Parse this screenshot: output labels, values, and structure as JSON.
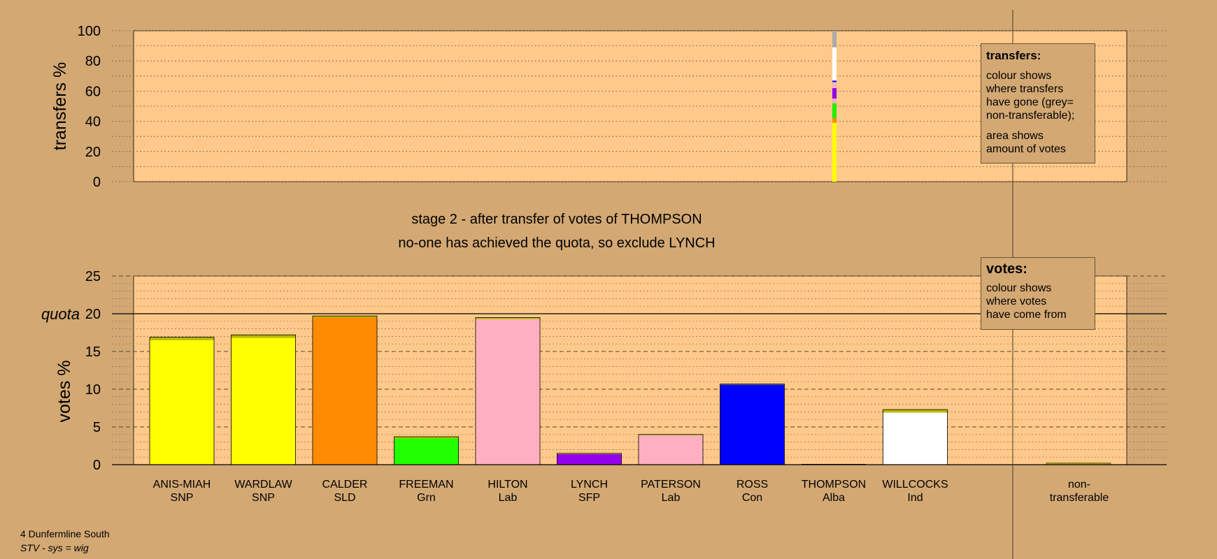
{
  "chart_data": {
    "type": "bar",
    "stage_title": "stage 2 - after transfer of votes of THOMPSON",
    "stage_subtitle": "no-one has achieved the quota, so exclude LYNCH",
    "transfers_chart": {
      "ylabel": "transfers %",
      "ylim": [
        0,
        100
      ],
      "yticks": [
        0,
        20,
        40,
        60,
        80,
        100
      ],
      "transferring_candidate": "THOMPSON",
      "segments": [
        {
          "to": "SNP (ANIS-MIAH/WARDLAW)",
          "color": "#ffff00",
          "from": 0,
          "to_pct": 39
        },
        {
          "to": "SLD",
          "color": "#ff8c00",
          "from": 39,
          "to_pct": 42
        },
        {
          "to": "Grn",
          "color": "#22ee00",
          "from": 42,
          "to_pct": 52
        },
        {
          "to": "Lab",
          "color": "#ffb0c0",
          "from": 52,
          "to_pct": 55
        },
        {
          "to": "SFP",
          "color": "#9400ee",
          "from": 55,
          "to_pct": 62
        },
        {
          "to": "Lab",
          "color": "#ffb0c0",
          "from": 62,
          "to_pct": 66
        },
        {
          "to": "Con",
          "color": "#0000ff",
          "from": 66,
          "to_pct": 67
        },
        {
          "to": "Ind",
          "color": "#ffffff",
          "from": 67,
          "to_pct": 89
        },
        {
          "to": "non-transferable",
          "color": "#aaaaaa",
          "from": 89,
          "to_pct": 100
        }
      ]
    },
    "votes_chart": {
      "ylabel": "votes %",
      "ylim": [
        0,
        25
      ],
      "yticks": [
        0,
        5,
        10,
        15,
        20,
        25
      ],
      "quota": 20,
      "quota_label": "quota",
      "candidates": [
        {
          "name": "ANIS-MIAH",
          "party": "SNP",
          "total": 16.9,
          "segments": [
            {
              "color": "#ffff00",
              "value": 16.5
            },
            {
              "color": "#b8b800",
              "value": 0.4
            }
          ]
        },
        {
          "name": "WARDLAW",
          "party": "SNP",
          "total": 17.2,
          "segments": [
            {
              "color": "#ffff00",
              "value": 16.8
            },
            {
              "color": "#b8b800",
              "value": 0.4
            }
          ]
        },
        {
          "name": "CALDER",
          "party": "SLD",
          "total": 19.7,
          "segments": [
            {
              "color": "#ff8c00",
              "value": 19.5
            },
            {
              "color": "#b8b800",
              "value": 0.2
            }
          ]
        },
        {
          "name": "FREEMAN",
          "party": "Grn",
          "total": 3.7,
          "segments": [
            {
              "color": "#22ff00",
              "value": 3.5
            },
            {
              "color": "#b8b800",
              "value": 0.2
            }
          ]
        },
        {
          "name": "HILTON",
          "party": "Lab",
          "total": 19.5,
          "segments": [
            {
              "color": "#ffb0c0",
              "value": 19.3
            },
            {
              "color": "#b8b800",
              "value": 0.2
            }
          ]
        },
        {
          "name": "LYNCH",
          "party": "SFP",
          "total": 1.5,
          "segments": [
            {
              "color": "#9400ee",
              "value": 1.4
            },
            {
              "color": "#b8b800",
              "value": 0.1
            }
          ]
        },
        {
          "name": "PATERSON",
          "party": "Lab",
          "total": 4.0,
          "segments": [
            {
              "color": "#ffb0c0",
              "value": 3.9
            },
            {
              "color": "#b8b800",
              "value": 0.1
            }
          ]
        },
        {
          "name": "ROSS",
          "party": "Con",
          "total": 10.7,
          "segments": [
            {
              "color": "#0000ff",
              "value": 10.6
            },
            {
              "color": "#b8b800",
              "value": 0.1
            }
          ]
        },
        {
          "name": "THOMPSON",
          "party": "Alba",
          "total": 0,
          "segments": []
        },
        {
          "name": "WILLCOCKS",
          "party": "Ind",
          "total": 7.3,
          "segments": [
            {
              "color": "#ffffff",
              "value": 6.9
            },
            {
              "color": "#b8b800",
              "value": 0.4
            }
          ]
        }
      ],
      "non_transferable": {
        "label_line1": "non-",
        "label_line2": "transferable",
        "value": 0.2,
        "color": "#b8b800"
      }
    }
  },
  "legends": {
    "transfers": {
      "title": "transfers:",
      "text1": "colour shows\nwhere transfers\nhave gone (grey=\nnon-transferable);",
      "text2": "area shows\namount of votes"
    },
    "votes": {
      "title": "votes:",
      "text1": "colour shows\nwhere votes\nhave come from"
    }
  },
  "footer": {
    "constituency": "4 Dunfermline South",
    "system": "STV - sys = wig"
  },
  "colors": {
    "background": "#d3a873",
    "plot_area": "#fec98a"
  }
}
